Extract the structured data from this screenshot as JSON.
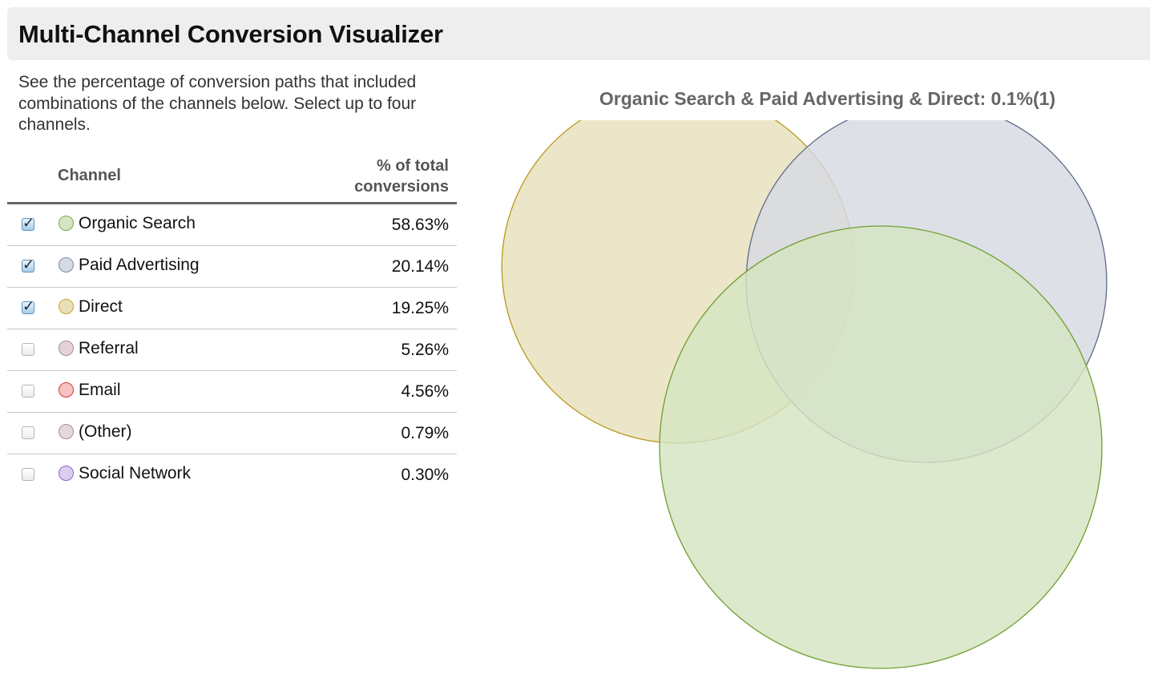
{
  "header": {
    "title": "Multi-Channel Conversion Visualizer"
  },
  "description": "See the percentage of conversion paths that included combinations of the channels below. Select up to four channels.",
  "table": {
    "col_channel": "Channel",
    "col_pct_line1": "% of total",
    "col_pct_line2": "conversions",
    "rows": [
      {
        "name": "Organic Search",
        "pct": "58.63%",
        "checked": true,
        "fill": "#d5e5c4",
        "stroke": "#7aab45"
      },
      {
        "name": "Paid Advertising",
        "pct": "20.14%",
        "checked": true,
        "fill": "#d6dae4",
        "stroke": "#7f8aa3"
      },
      {
        "name": "Direct",
        "pct": "19.25%",
        "checked": true,
        "fill": "#e9e0b9",
        "stroke": "#c7a52e"
      },
      {
        "name": "Referral",
        "pct": "5.26%",
        "checked": false,
        "fill": "#e3d3d6",
        "stroke": "#a88a90"
      },
      {
        "name": "Email",
        "pct": "4.56%",
        "checked": false,
        "fill": "#f5c3c3",
        "stroke": "#d8383a"
      },
      {
        "name": "(Other)",
        "pct": "0.79%",
        "checked": false,
        "fill": "#e6d8da",
        "stroke": "#a88d92"
      },
      {
        "name": "Social Network",
        "pct": "0.30%",
        "checked": false,
        "fill": "#dccdf2",
        "stroke": "#8b63c9"
      }
    ]
  },
  "chart_data": {
    "type": "venn",
    "title": "Organic Search & Paid Advertising & Direct: 0.1%(1)",
    "sets": [
      {
        "name": "Direct",
        "share": 19.25,
        "fill": "#e8e0bc",
        "stroke": "#b8981c"
      },
      {
        "name": "Paid Advertising",
        "share": 20.14,
        "fill": "#d7d9e3",
        "stroke": "#5e6a88"
      },
      {
        "name": "Organic Search",
        "share": 58.63,
        "fill": "#d4e4c2",
        "stroke": "#6f9e2e"
      }
    ],
    "highlighted_intersection": {
      "sets": [
        "Organic Search",
        "Paid Advertising",
        "Direct"
      ],
      "percent": 0.1,
      "count": 1
    }
  }
}
